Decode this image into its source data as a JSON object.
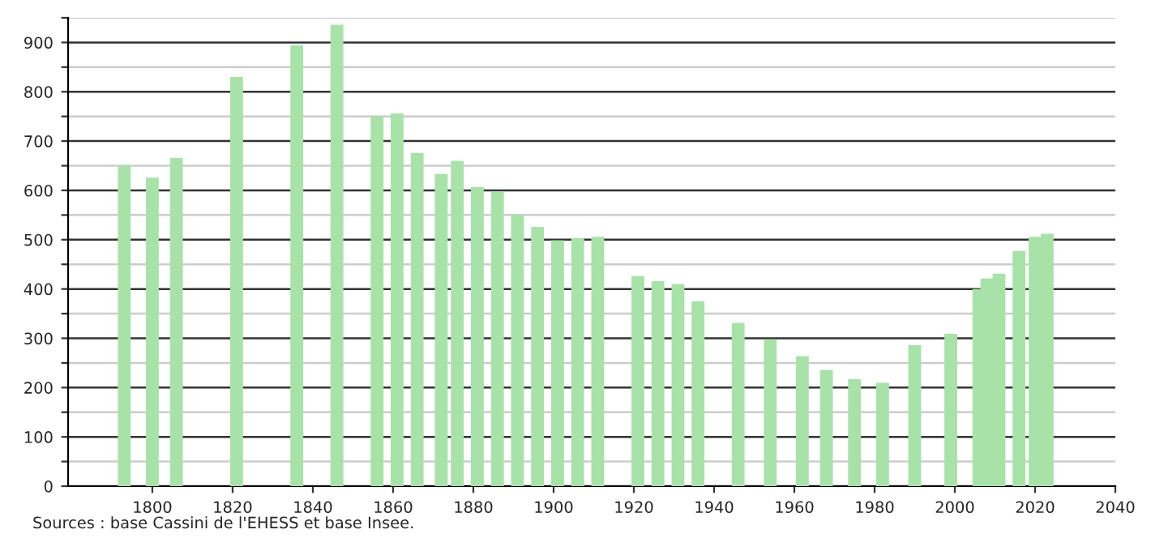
{
  "chart_data": {
    "type": "bar",
    "x": [
      1793,
      1800,
      1806,
      1821,
      1836,
      1846,
      1856,
      1861,
      1866,
      1872,
      1876,
      1881,
      1886,
      1891,
      1896,
      1901,
      1906,
      1911,
      1921,
      1926,
      1931,
      1936,
      1946,
      1954,
      1962,
      1968,
      1975,
      1982,
      1990,
      1999,
      2006,
      2008,
      2011,
      2016,
      2020,
      2023
    ],
    "values": [
      650,
      626,
      666,
      830,
      894,
      936,
      750,
      756,
      676,
      633,
      660,
      607,
      598,
      551,
      526,
      499,
      503,
      506,
      426,
      416,
      410,
      375,
      331,
      298,
      264,
      236,
      217,
      210,
      286,
      309,
      400,
      421,
      431,
      477,
      506,
      512
    ],
    "color": "#a8e2a8",
    "xlim": [
      1779,
      2040
    ],
    "xticks": [
      1800,
      1820,
      1840,
      1860,
      1880,
      1900,
      1920,
      1940,
      1960,
      1980,
      2000,
      2020,
      2040
    ],
    "ylim": [
      0,
      950
    ],
    "yticks": [
      0,
      {
        "value": 50,
        "label": null
      },
      100,
      {
        "value": 150,
        "label": null
      },
      200,
      {
        "value": 250,
        "label": null
      },
      300,
      {
        "value": 350,
        "label": null
      },
      400,
      {
        "value": 450,
        "label": null
      },
      500,
      {
        "value": 550,
        "label": null
      },
      600,
      {
        "value": 650,
        "label": null
      },
      700,
      {
        "value": 750,
        "label": null
      },
      800,
      {
        "value": 850,
        "label": null
      },
      900,
      {
        "value": 950,
        "label": null
      }
    ],
    "grid": "y",
    "annotations": [
      "Sources : base Cassini de l'EHESS et base Insee."
    ]
  }
}
